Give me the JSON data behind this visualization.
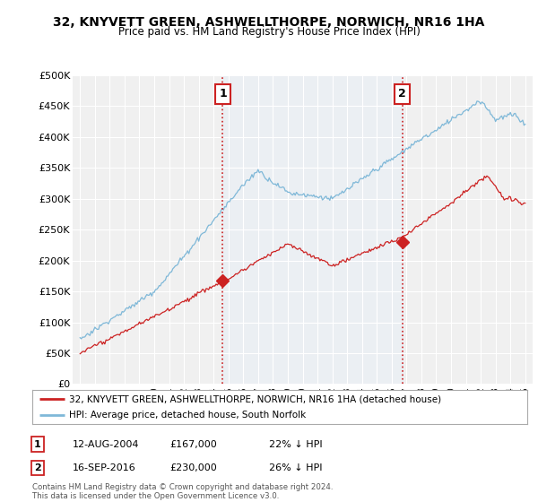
{
  "title": "32, KNYVETT GREEN, ASHWELLTHORPE, NORWICH, NR16 1HA",
  "subtitle": "Price paid vs. HM Land Registry's House Price Index (HPI)",
  "ylabel_ticks": [
    "£0",
    "£50K",
    "£100K",
    "£150K",
    "£200K",
    "£250K",
    "£300K",
    "£350K",
    "£400K",
    "£450K",
    "£500K"
  ],
  "ytick_vals": [
    0,
    50000,
    100000,
    150000,
    200000,
    250000,
    300000,
    350000,
    400000,
    450000,
    500000
  ],
  "ylim": [
    0,
    500000
  ],
  "xlim_start": 1994.5,
  "xlim_end": 2025.5,
  "hpi_color": "#7fb8d8",
  "price_color": "#cc2222",
  "vline_color": "#cc2222",
  "marker1_x": 2004.62,
  "marker1_y": 167000,
  "marker2_x": 2016.71,
  "marker2_y": 230000,
  "shade_color": "#ddeeff",
  "legend_line1": "32, KNYVETT GREEN, ASHWELLTHORPE, NORWICH, NR16 1HA (detached house)",
  "legend_line2": "HPI: Average price, detached house, South Norfolk",
  "table_rows": [
    [
      "1",
      "12-AUG-2004",
      "£167,000",
      "22% ↓ HPI"
    ],
    [
      "2",
      "16-SEP-2016",
      "£230,000",
      "26% ↓ HPI"
    ]
  ],
  "footnote": "Contains HM Land Registry data © Crown copyright and database right 2024.\nThis data is licensed under the Open Government Licence v3.0.",
  "background_color": "#ffffff",
  "plot_background": "#f0f0f0"
}
